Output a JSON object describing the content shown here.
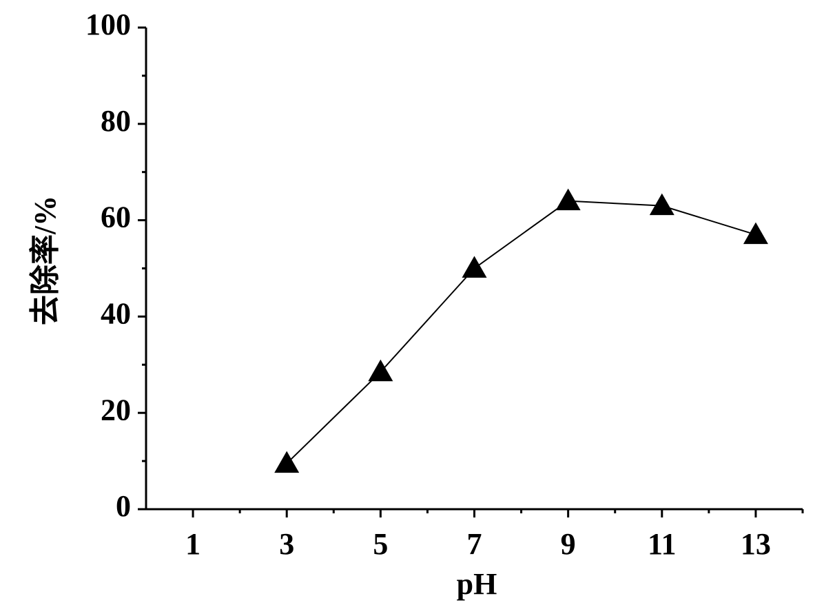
{
  "chart_data": {
    "type": "line",
    "x_label": "pH",
    "y_label": "去除率/%",
    "x": [
      3,
      5,
      7,
      9,
      11,
      13
    ],
    "series": [
      {
        "name": "去除率",
        "color": "#000000",
        "values": [
          9.5,
          28.5,
          50,
          64,
          63,
          57
        ]
      }
    ],
    "xlim": [
      0,
      14
    ],
    "xticks": [
      1,
      3,
      5,
      7,
      9,
      11,
      13
    ],
    "xminorticks": [
      2,
      4,
      6,
      8,
      10,
      12,
      14
    ],
    "ylim": [
      0,
      100
    ],
    "yticks": [
      0,
      20,
      40,
      60,
      80,
      100
    ],
    "yminorticks": [
      10,
      30,
      50,
      70,
      90
    ],
    "marker": "triangle",
    "grid": false
  }
}
